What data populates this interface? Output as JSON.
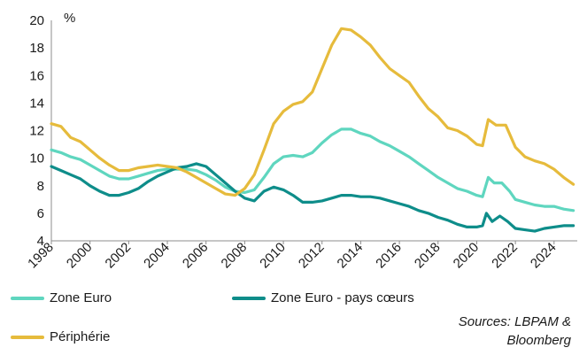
{
  "chart_data": {
    "type": "line",
    "title": "",
    "ylabel": "%",
    "xlabel": "",
    "xlim": [
      1998,
      2025.2
    ],
    "ylim": [
      4,
      20
    ],
    "yticks": [
      4,
      6,
      8,
      10,
      12,
      14,
      16,
      18,
      20
    ],
    "xticks": [
      "1998",
      "2000",
      "2002",
      "2004",
      "2006",
      "2008",
      "2010",
      "2012",
      "2014",
      "2016",
      "2018",
      "2020",
      "2022",
      "2024"
    ],
    "grid": false,
    "legend_position": "bottom",
    "series": [
      {
        "name": "Zone Euro",
        "color": "#5fd6bf",
        "points": [
          [
            1998.0,
            10.6
          ],
          [
            1998.5,
            10.4
          ],
          [
            1999.0,
            10.1
          ],
          [
            1999.5,
            9.9
          ],
          [
            2000.0,
            9.5
          ],
          [
            2000.5,
            9.1
          ],
          [
            2001.0,
            8.7
          ],
          [
            2001.5,
            8.5
          ],
          [
            2002.0,
            8.5
          ],
          [
            2002.5,
            8.7
          ],
          [
            2003.0,
            8.9
          ],
          [
            2003.5,
            9.1
          ],
          [
            2004.0,
            9.2
          ],
          [
            2004.5,
            9.2
          ],
          [
            2005.0,
            9.2
          ],
          [
            2005.5,
            9.1
          ],
          [
            2006.0,
            8.8
          ],
          [
            2006.5,
            8.4
          ],
          [
            2007.0,
            7.9
          ],
          [
            2007.5,
            7.6
          ],
          [
            2008.0,
            7.5
          ],
          [
            2008.5,
            7.7
          ],
          [
            2009.0,
            8.6
          ],
          [
            2009.5,
            9.6
          ],
          [
            2010.0,
            10.1
          ],
          [
            2010.5,
            10.2
          ],
          [
            2011.0,
            10.1
          ],
          [
            2011.5,
            10.4
          ],
          [
            2012.0,
            11.1
          ],
          [
            2012.5,
            11.7
          ],
          [
            2013.0,
            12.1
          ],
          [
            2013.5,
            12.1
          ],
          [
            2014.0,
            11.8
          ],
          [
            2014.5,
            11.6
          ],
          [
            2015.0,
            11.2
          ],
          [
            2015.5,
            10.9
          ],
          [
            2016.0,
            10.5
          ],
          [
            2016.5,
            10.1
          ],
          [
            2017.0,
            9.6
          ],
          [
            2017.5,
            9.1
          ],
          [
            2018.0,
            8.6
          ],
          [
            2018.5,
            8.2
          ],
          [
            2019.0,
            7.8
          ],
          [
            2019.5,
            7.6
          ],
          [
            2020.0,
            7.3
          ],
          [
            2020.3,
            7.2
          ],
          [
            2020.6,
            8.6
          ],
          [
            2020.9,
            8.2
          ],
          [
            2021.3,
            8.2
          ],
          [
            2021.7,
            7.6
          ],
          [
            2022.0,
            7.0
          ],
          [
            2022.5,
            6.8
          ],
          [
            2023.0,
            6.6
          ],
          [
            2023.5,
            6.5
          ],
          [
            2024.0,
            6.5
          ],
          [
            2024.5,
            6.3
          ],
          [
            2025.0,
            6.2
          ]
        ]
      },
      {
        "name": "Zone Euro - pays cœurs",
        "color": "#0e8d8a",
        "points": [
          [
            1998.0,
            9.4
          ],
          [
            1998.5,
            9.1
          ],
          [
            1999.0,
            8.8
          ],
          [
            1999.5,
            8.5
          ],
          [
            2000.0,
            8.0
          ],
          [
            2000.5,
            7.6
          ],
          [
            2001.0,
            7.3
          ],
          [
            2001.5,
            7.3
          ],
          [
            2002.0,
            7.5
          ],
          [
            2002.5,
            7.8
          ],
          [
            2003.0,
            8.3
          ],
          [
            2003.5,
            8.7
          ],
          [
            2004.0,
            9.0
          ],
          [
            2004.5,
            9.3
          ],
          [
            2005.0,
            9.4
          ],
          [
            2005.5,
            9.6
          ],
          [
            2006.0,
            9.4
          ],
          [
            2006.5,
            8.8
          ],
          [
            2007.0,
            8.2
          ],
          [
            2007.5,
            7.6
          ],
          [
            2008.0,
            7.1
          ],
          [
            2008.5,
            6.9
          ],
          [
            2009.0,
            7.6
          ],
          [
            2009.5,
            7.9
          ],
          [
            2010.0,
            7.7
          ],
          [
            2010.5,
            7.3
          ],
          [
            2011.0,
            6.8
          ],
          [
            2011.5,
            6.8
          ],
          [
            2012.0,
            6.9
          ],
          [
            2012.5,
            7.1
          ],
          [
            2013.0,
            7.3
          ],
          [
            2013.5,
            7.3
          ],
          [
            2014.0,
            7.2
          ],
          [
            2014.5,
            7.2
          ],
          [
            2015.0,
            7.1
          ],
          [
            2015.5,
            6.9
          ],
          [
            2016.0,
            6.7
          ],
          [
            2016.5,
            6.5
          ],
          [
            2017.0,
            6.2
          ],
          [
            2017.5,
            6.0
          ],
          [
            2018.0,
            5.7
          ],
          [
            2018.5,
            5.5
          ],
          [
            2019.0,
            5.2
          ],
          [
            2019.5,
            5.0
          ],
          [
            2020.0,
            5.0
          ],
          [
            2020.3,
            5.1
          ],
          [
            2020.5,
            6.0
          ],
          [
            2020.8,
            5.4
          ],
          [
            2021.2,
            5.8
          ],
          [
            2021.6,
            5.4
          ],
          [
            2022.0,
            4.9
          ],
          [
            2022.5,
            4.8
          ],
          [
            2023.0,
            4.7
          ],
          [
            2023.5,
            4.9
          ],
          [
            2024.0,
            5.0
          ],
          [
            2024.5,
            5.1
          ],
          [
            2025.0,
            5.1
          ]
        ]
      },
      {
        "name": "Périphérie",
        "color": "#e6bb3c",
        "points": [
          [
            1998.0,
            12.5
          ],
          [
            1998.5,
            12.3
          ],
          [
            1999.0,
            11.5
          ],
          [
            1999.5,
            11.2
          ],
          [
            2000.0,
            10.6
          ],
          [
            2000.5,
            10.0
          ],
          [
            2001.0,
            9.5
          ],
          [
            2001.5,
            9.1
          ],
          [
            2002.0,
            9.1
          ],
          [
            2002.5,
            9.3
          ],
          [
            2003.0,
            9.4
          ],
          [
            2003.5,
            9.5
          ],
          [
            2004.0,
            9.4
          ],
          [
            2004.5,
            9.3
          ],
          [
            2005.0,
            9.0
          ],
          [
            2005.5,
            8.6
          ],
          [
            2006.0,
            8.2
          ],
          [
            2006.5,
            7.8
          ],
          [
            2007.0,
            7.4
          ],
          [
            2007.5,
            7.3
          ],
          [
            2008.0,
            7.8
          ],
          [
            2008.5,
            8.8
          ],
          [
            2009.0,
            10.6
          ],
          [
            2009.5,
            12.5
          ],
          [
            2010.0,
            13.4
          ],
          [
            2010.5,
            13.9
          ],
          [
            2011.0,
            14.1
          ],
          [
            2011.5,
            14.8
          ],
          [
            2012.0,
            16.5
          ],
          [
            2012.5,
            18.2
          ],
          [
            2013.0,
            19.4
          ],
          [
            2013.5,
            19.3
          ],
          [
            2014.0,
            18.8
          ],
          [
            2014.5,
            18.2
          ],
          [
            2015.0,
            17.3
          ],
          [
            2015.5,
            16.5
          ],
          [
            2016.0,
            16.0
          ],
          [
            2016.5,
            15.5
          ],
          [
            2017.0,
            14.5
          ],
          [
            2017.5,
            13.6
          ],
          [
            2018.0,
            13.0
          ],
          [
            2018.5,
            12.2
          ],
          [
            2019.0,
            12.0
          ],
          [
            2019.5,
            11.6
          ],
          [
            2020.0,
            11.0
          ],
          [
            2020.3,
            10.9
          ],
          [
            2020.6,
            12.8
          ],
          [
            2021.0,
            12.4
          ],
          [
            2021.5,
            12.4
          ],
          [
            2022.0,
            10.8
          ],
          [
            2022.5,
            10.1
          ],
          [
            2023.0,
            9.8
          ],
          [
            2023.5,
            9.6
          ],
          [
            2024.0,
            9.2
          ],
          [
            2024.5,
            8.6
          ],
          [
            2025.0,
            8.1
          ]
        ]
      }
    ]
  },
  "source_lines": [
    "Sources: LBPAM &",
    "Bloomberg"
  ]
}
